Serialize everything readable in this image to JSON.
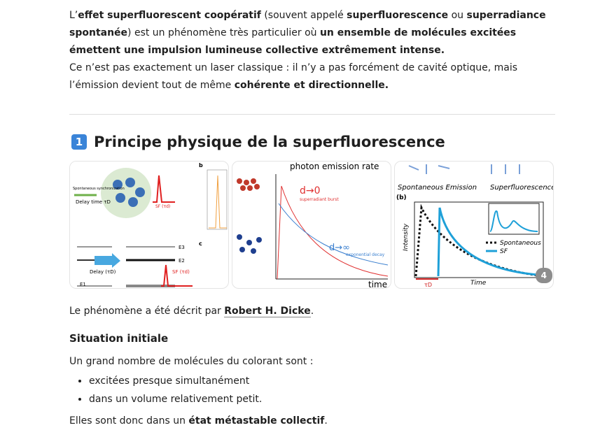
{
  "intro": [
    [
      {
        "t": "L’"
      },
      {
        "t": "effet superfluorescent coopératif",
        "b": true
      },
      {
        "t": " (souvent appelé "
      },
      {
        "t": "superfluorescence",
        "b": true
      },
      {
        "t": " ou "
      },
      {
        "t": "superradiance spontanée",
        "b": true
      },
      {
        "t": ") est un phénomène très particulier où "
      },
      {
        "t": "un ensemble de molécules excitées émettent une impulsion lumineuse collective extrêmement intense.",
        "b": true
      }
    ],
    [
      {
        "t": "Ce n’est pas exactement un laser classique : il n’y a pas forcément de cavité optique, mais l’émission devient tout de même "
      },
      {
        "t": "cohérente et directionnelle.",
        "b": true
      }
    ]
  ],
  "heading": {
    "number": "1",
    "title": "Principe physique de la superfluorescence"
  },
  "images": [
    {
      "labels": [
        "Spontaneous synchronization",
        "Delay time τD",
        "SF (τd)",
        "b",
        "c",
        "E3",
        "E2",
        "E1",
        "Delay (τD)",
        "SF (τd)"
      ]
    },
    {
      "labels": [
        "photon emission rate",
        "d→0",
        "superradiant burst",
        "d→∞",
        "exponential decay",
        "time"
      ]
    },
    {
      "labels": [
        "Spontaneous Emission",
        "Superfluorescence",
        "(b)",
        "Intensity",
        "Spontaneous",
        "SF",
        "Time",
        "τD"
      ]
    }
  ],
  "image_count": "4",
  "source": [
    {
      "t": "Le phénomène a été décrit par "
    },
    {
      "t": "Robert H. Dicke",
      "b": true,
      "link": true
    },
    {
      "t": "."
    }
  ],
  "section": {
    "title": "Situation initiale",
    "lead": "Un grand nombre de molécules du colorant sont :",
    "bullets": [
      "excitées presque simultanément",
      "dans un volume relativement petit."
    ],
    "conclusion": [
      {
        "t": "Elles sont donc dans un "
      },
      {
        "t": "état métastable collectif",
        "b": true
      },
      {
        "t": "."
      }
    ]
  }
}
